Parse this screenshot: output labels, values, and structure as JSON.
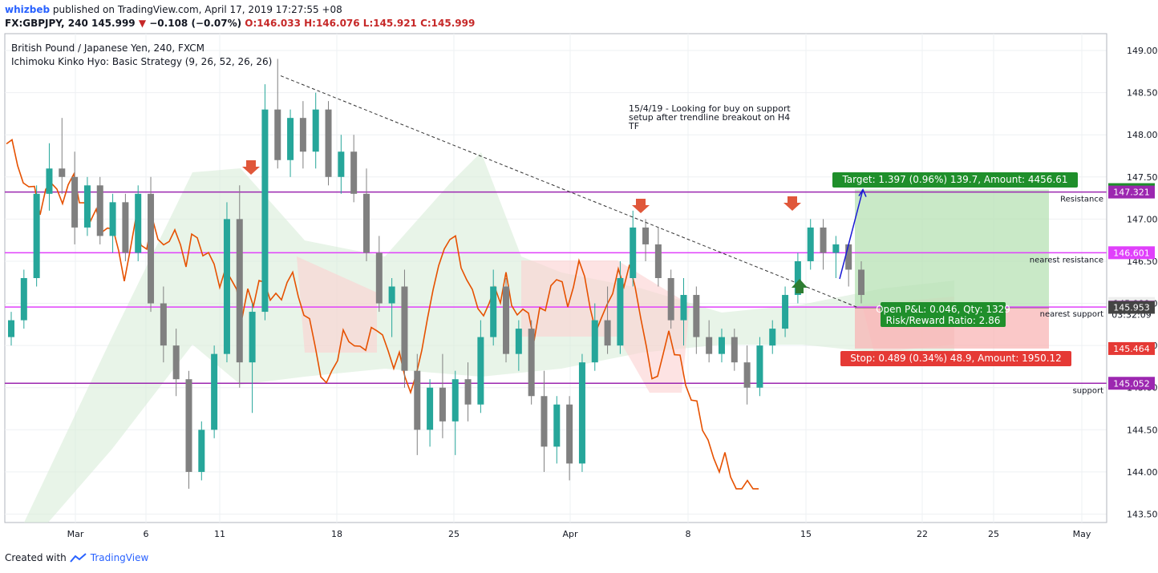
{
  "header": {
    "author": "whizbeb",
    "published_text": "published on TradingView.com, April 17, 2019 17:27:55 +08",
    "symbol": "FX:GBPJPY, 240",
    "last": "145.999",
    "change": "−0.108 (−0.07%)",
    "ohlc": "O:146.033 H:146.076 L:145.921 C:145.999"
  },
  "legend": {
    "title": "British Pound / Japanese Yen, 240, FXCM",
    "indicator": "Ichimoku Kinko Hyo: Basic Strategy (9, 26, 52, 26, 26)"
  },
  "footer": {
    "created_with": "Created with",
    "brand": "TradingView"
  },
  "annotation": {
    "note": [
      "15/4/19 - Looking for buy on support",
      "setup after trendline breakout on H4",
      "TF"
    ],
    "target": "Target: 1.397 (0.96%) 139.7, Amount: 4456.61",
    "pnl_1": "Open P&L: 0.046, Qty: 1329",
    "pnl_2": "Risk/Reward Ratio: 2.86",
    "stop": "Stop: 0.489 (0.34%) 48.9, Amount: 1950.12",
    "countdown": "03:32:09"
  },
  "colors": {
    "up": "#26a69a",
    "down": "#808080",
    "lagging": "#e65100",
    "level": "#9c27b0",
    "level_light": "#e040fb",
    "cloud_green": "#d8ecd8",
    "cloud_red": "#fcd0d0",
    "target_box": "#b7e1b4",
    "stop_box": "#f8b5b5",
    "accent": "#2962ff"
  },
  "chart_data": {
    "type": "candlestick",
    "symbol": "GBPJPY",
    "timeframe": "240",
    "ylim": [
      143.4,
      149.2
    ],
    "y_ticks": [
      "143.500",
      "144.000",
      "144.500",
      "145.000",
      "145.500",
      "146.000",
      "146.500",
      "147.000",
      "147.500",
      "148.000",
      "148.500",
      "149.000"
    ],
    "x_ticks": [
      "Mar",
      "6",
      "11",
      "18",
      "25",
      "Apr",
      "8",
      "15",
      "22",
      "25",
      "May"
    ],
    "levels": [
      {
        "label": "Resistance",
        "price": 147.321,
        "price_text": "147.321",
        "color": "#9c27b0"
      },
      {
        "label": "nearest resistance",
        "price": 146.601,
        "price_text": "146.601",
        "color": "#e040fb"
      },
      {
        "label": "nearest support",
        "price": 145.956,
        "price_text": "145.956",
        "color": "#e040fb"
      },
      {
        "label": "support",
        "price": 145.052,
        "price_text": "145.052",
        "color": "#9c27b0"
      }
    ],
    "trade": {
      "entry": 145.953,
      "entry_text": "145.953",
      "target": 147.35,
      "target_text": "147.350",
      "stop": 145.464,
      "stop_text": "145.464",
      "last": 145.999,
      "last_text": "145.999"
    },
    "trendline": [
      [
        148.7,
        0
      ],
      [
        145.95,
        1
      ]
    ],
    "candles": [
      [
        145.6,
        145.9,
        145.5,
        145.8
      ],
      [
        145.8,
        146.4,
        145.7,
        146.3
      ],
      [
        146.3,
        147.4,
        146.2,
        147.3
      ],
      [
        147.3,
        147.9,
        147.1,
        147.6
      ],
      [
        147.6,
        148.2,
        147.3,
        147.5
      ],
      [
        147.5,
        147.8,
        146.7,
        146.9
      ],
      [
        146.9,
        147.5,
        146.8,
        147.4
      ],
      [
        147.4,
        147.5,
        146.7,
        146.8
      ],
      [
        146.8,
        147.3,
        146.6,
        147.2
      ],
      [
        147.2,
        147.3,
        146.5,
        146.6
      ],
      [
        146.6,
        147.4,
        146.5,
        147.3
      ],
      [
        147.3,
        147.5,
        145.9,
        146.0
      ],
      [
        146.0,
        146.2,
        145.3,
        145.5
      ],
      [
        145.5,
        145.7,
        144.9,
        145.1
      ],
      [
        145.1,
        145.2,
        143.8,
        144.0
      ],
      [
        144.0,
        144.6,
        143.9,
        144.5
      ],
      [
        144.5,
        145.5,
        144.4,
        145.4
      ],
      [
        145.4,
        147.2,
        145.3,
        147.0
      ],
      [
        147.0,
        147.4,
        145.0,
        145.3
      ],
      [
        145.3,
        146.0,
        144.7,
        145.9
      ],
      [
        145.9,
        148.6,
        145.8,
        148.3
      ],
      [
        148.3,
        148.9,
        147.6,
        147.7
      ],
      [
        147.7,
        148.3,
        147.5,
        148.2
      ],
      [
        148.2,
        148.4,
        147.6,
        147.8
      ],
      [
        147.8,
        148.5,
        147.6,
        148.3
      ],
      [
        148.3,
        148.4,
        147.4,
        147.5
      ],
      [
        147.5,
        148.0,
        147.3,
        147.8
      ],
      [
        147.8,
        148.0,
        147.2,
        147.3
      ],
      [
        147.3,
        147.6,
        146.5,
        146.6
      ],
      [
        146.6,
        146.8,
        145.9,
        146.0
      ],
      [
        146.0,
        146.3,
        145.6,
        146.2
      ],
      [
        146.2,
        146.4,
        145.0,
        145.2
      ],
      [
        145.2,
        145.4,
        144.2,
        144.5
      ],
      [
        144.5,
        145.1,
        144.3,
        145.0
      ],
      [
        145.0,
        145.4,
        144.4,
        144.6
      ],
      [
        144.6,
        145.2,
        144.2,
        145.1
      ],
      [
        145.1,
        145.3,
        144.6,
        144.8
      ],
      [
        144.8,
        145.8,
        144.7,
        145.6
      ],
      [
        145.6,
        146.4,
        145.5,
        146.2
      ],
      [
        146.2,
        146.3,
        145.3,
        145.4
      ],
      [
        145.4,
        145.8,
        145.2,
        145.7
      ],
      [
        145.7,
        145.8,
        144.8,
        144.9
      ],
      [
        144.9,
        145.2,
        144.0,
        144.3
      ],
      [
        144.3,
        144.9,
        144.1,
        144.8
      ],
      [
        144.8,
        144.9,
        143.9,
        144.1
      ],
      [
        144.1,
        145.4,
        144.0,
        145.3
      ],
      [
        145.3,
        146.0,
        145.2,
        145.8
      ],
      [
        145.8,
        146.2,
        145.4,
        145.5
      ],
      [
        145.5,
        146.5,
        145.4,
        146.3
      ],
      [
        146.3,
        147.1,
        146.2,
        146.9
      ],
      [
        146.9,
        147.0,
        146.5,
        146.7
      ],
      [
        146.7,
        146.9,
        146.2,
        146.3
      ],
      [
        146.3,
        146.4,
        145.7,
        145.8
      ],
      [
        145.8,
        146.3,
        145.5,
        146.1
      ],
      [
        146.1,
        146.2,
        145.4,
        145.6
      ],
      [
        145.6,
        145.8,
        145.3,
        145.4
      ],
      [
        145.4,
        145.7,
        145.3,
        145.6
      ],
      [
        145.6,
        145.7,
        145.2,
        145.3
      ],
      [
        145.3,
        145.5,
        144.8,
        145.0
      ],
      [
        145.0,
        145.6,
        144.9,
        145.5
      ],
      [
        145.5,
        145.8,
        145.4,
        145.7
      ],
      [
        145.7,
        146.2,
        145.6,
        146.1
      ],
      [
        146.1,
        146.6,
        146.0,
        146.5
      ],
      [
        146.5,
        147.0,
        146.4,
        146.9
      ],
      [
        146.9,
        147.0,
        146.4,
        146.6
      ],
      [
        146.6,
        146.8,
        146.3,
        146.7
      ],
      [
        146.7,
        146.7,
        146.2,
        146.4
      ],
      [
        146.4,
        146.5,
        146.0,
        146.1
      ]
    ]
  }
}
